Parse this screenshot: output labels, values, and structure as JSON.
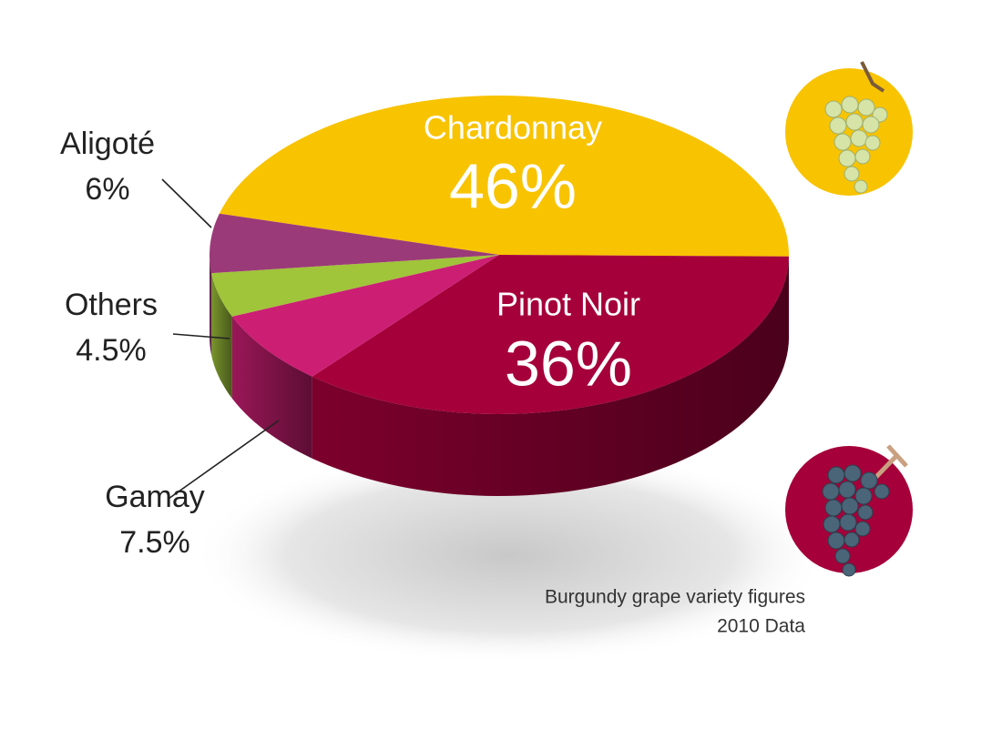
{
  "chart_data": {
    "type": "pie",
    "categories": [
      "Chardonnay",
      "Pinot Noir",
      "Gamay",
      "Others",
      "Aligoté"
    ],
    "values": [
      46,
      36,
      7.5,
      4.5,
      6
    ],
    "value_labels": [
      "46%",
      "36%",
      "7.5%",
      "4.5%",
      "6%"
    ],
    "colors": [
      "#f8c300",
      "#a5003a",
      "#cc1f74",
      "#a0c43a",
      "#9b3a78"
    ],
    "notes": [
      "Burgundy grape variety figures",
      "2010 Data"
    ]
  }
}
